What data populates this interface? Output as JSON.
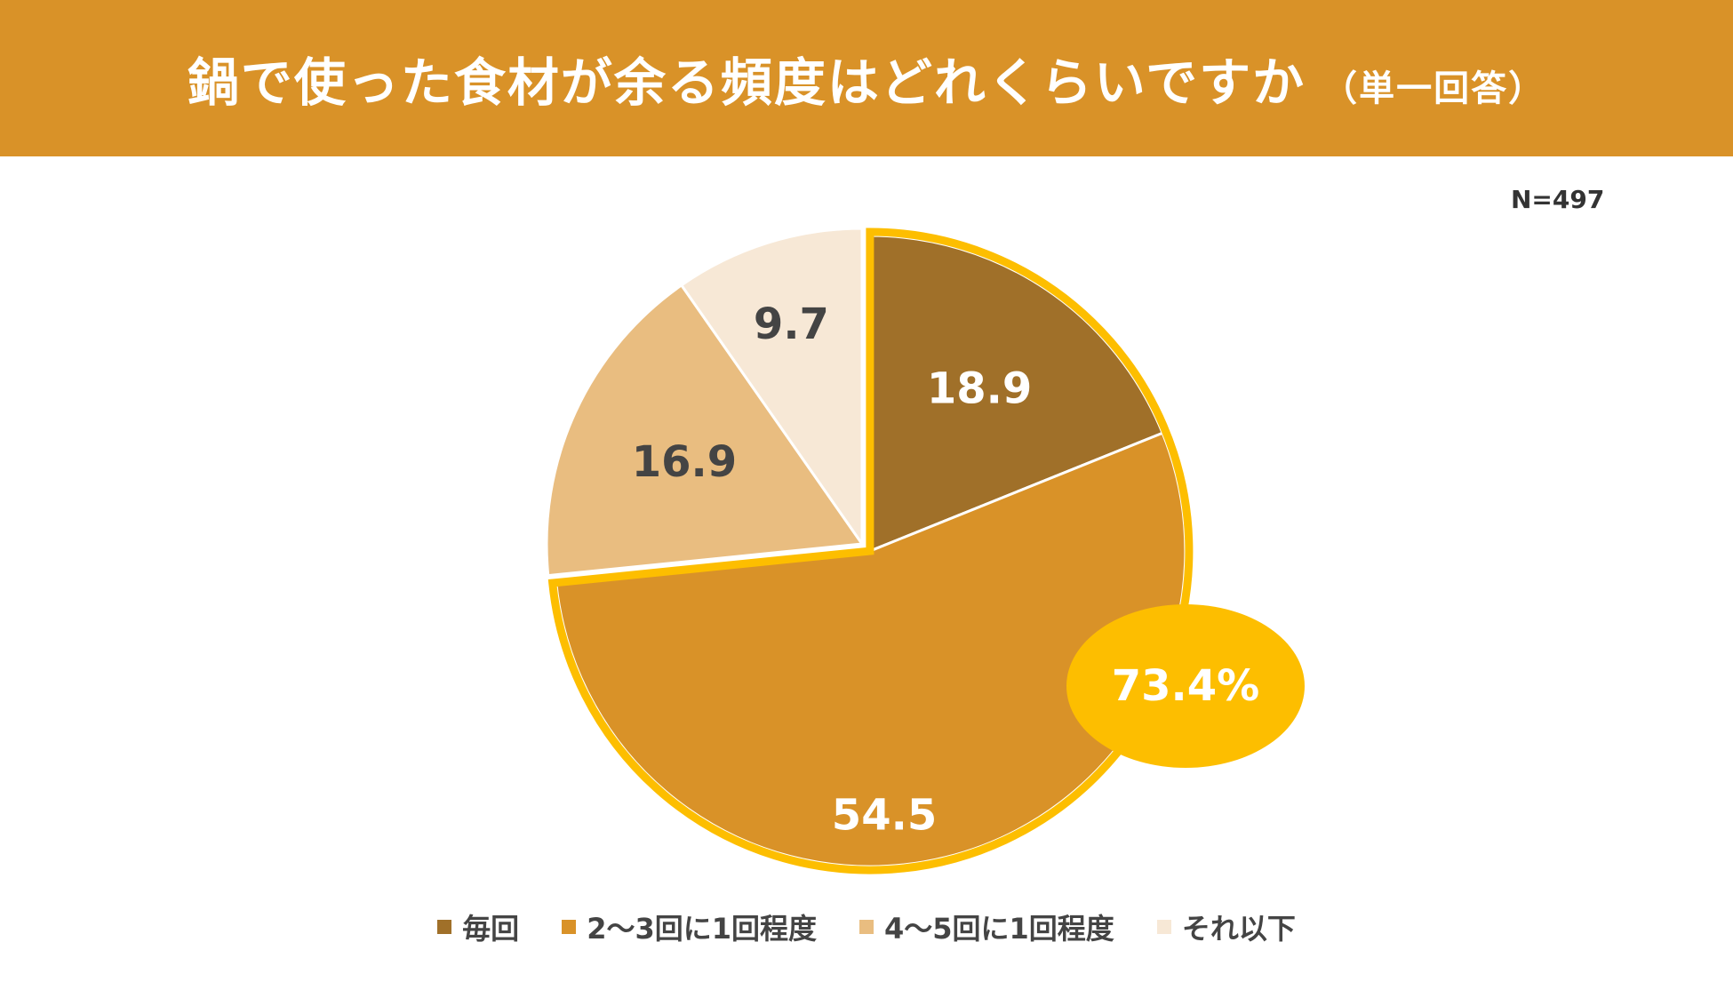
{
  "header": {
    "title": "鍋で使った食材が余る頻度はどれくらいですか",
    "subtitle": "（単一回答）"
  },
  "sample_size": "N=497",
  "colors": {
    "header_bg": "#D99228",
    "highlight": "#FDBE00"
  },
  "chart_data": {
    "type": "pie",
    "title": "鍋で使った食材が余る頻度はどれくらいですか",
    "start_angle_deg": 0,
    "direction": "clockwise",
    "slices": [
      {
        "label": "毎回",
        "value": 18.9,
        "display": "18.9",
        "color": "#A07029",
        "text_color": "#ffffff"
      },
      {
        "label": "2〜3回に1回程度",
        "value": 54.5,
        "display": "54.5",
        "color": "#D99228",
        "text_color": "#ffffff"
      },
      {
        "label": "4〜5回に1回程度",
        "value": 16.9,
        "display": "16.9",
        "color": "#E9BD80",
        "text_color": "#444444"
      },
      {
        "label": "それ以下",
        "value": 9.7,
        "display": "9.7",
        "color": "#F7E8D6",
        "text_color": "#444444"
      }
    ],
    "highlight": {
      "slices": [
        0,
        1
      ],
      "label": "73.4%",
      "color": "#FDBE00"
    },
    "legend_position": "bottom"
  }
}
